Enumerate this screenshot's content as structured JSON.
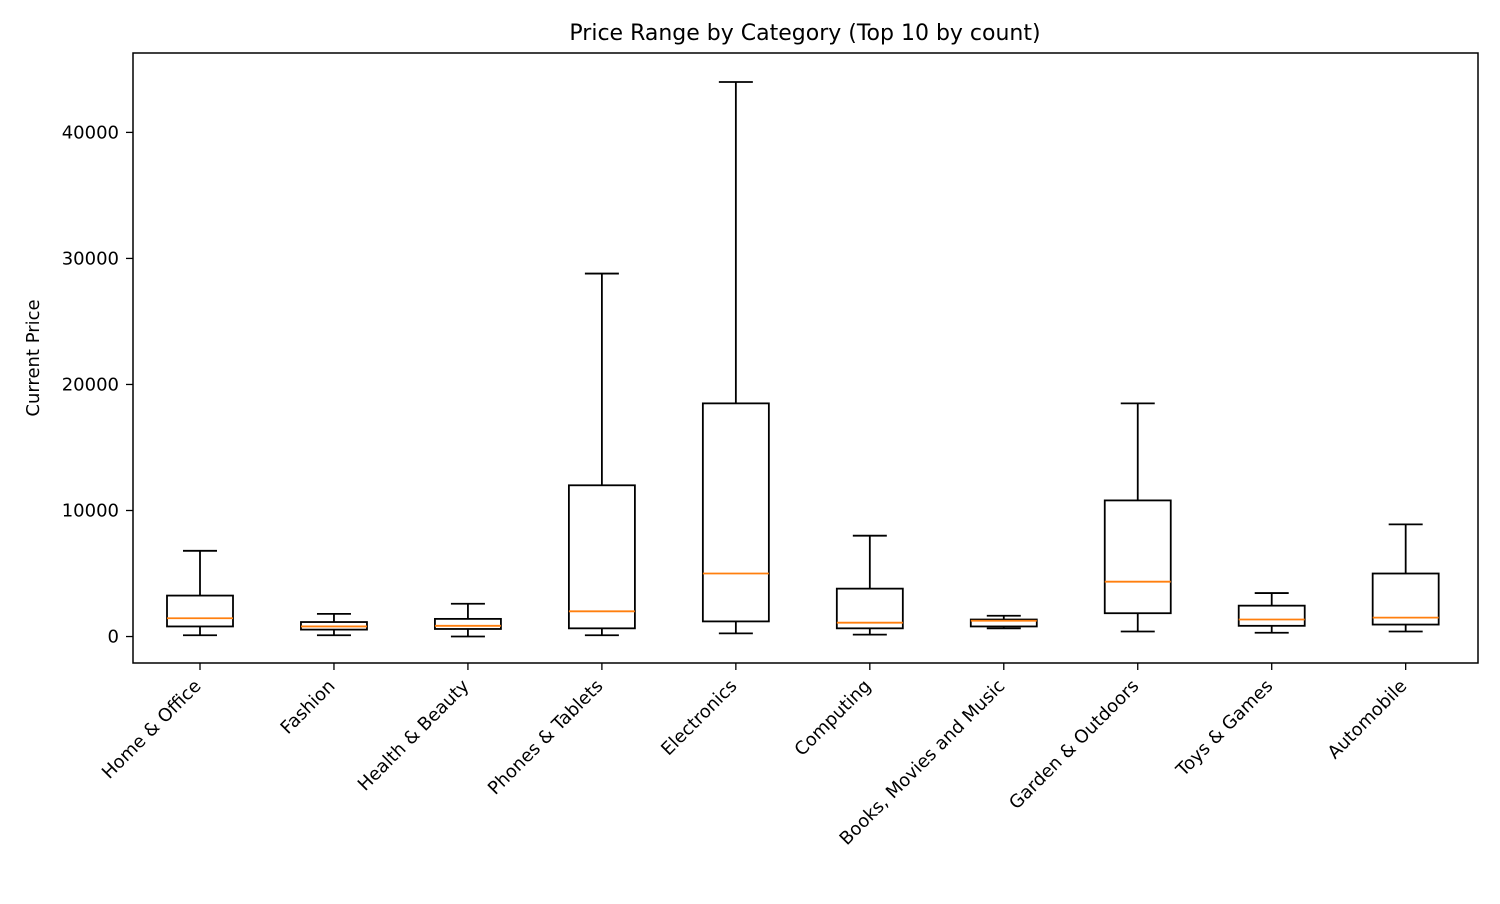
{
  "chart_data": {
    "type": "box",
    "title": "Price Range by Category (Top 10 by count)",
    "xlabel": "",
    "ylabel": "Current Price",
    "ylim": [
      -2100,
      46300
    ],
    "yticks": [
      0,
      10000,
      20000,
      30000,
      40000
    ],
    "grid": false,
    "outliers_shown": false,
    "categories": [
      "Home & Office",
      "Fashion",
      "Health & Beauty",
      "Phones & Tablets",
      "Electronics",
      "Computing",
      "Books, Movies and Music",
      "Garden & Outdoors",
      "Toys & Games",
      "Automobile"
    ],
    "boxes": [
      {
        "whisker_low": 100,
        "q1": 800,
        "median": 1450,
        "q3": 3250,
        "whisker_high": 6800
      },
      {
        "whisker_low": 100,
        "q1": 550,
        "median": 800,
        "q3": 1150,
        "whisker_high": 1800
      },
      {
        "whisker_low": 0,
        "q1": 600,
        "median": 850,
        "q3": 1400,
        "whisker_high": 2600
      },
      {
        "whisker_low": 100,
        "q1": 650,
        "median": 2000,
        "q3": 12000,
        "whisker_high": 28800
      },
      {
        "whisker_low": 250,
        "q1": 1200,
        "median": 5000,
        "q3": 18500,
        "whisker_high": 44000
      },
      {
        "whisker_low": 150,
        "q1": 650,
        "median": 1100,
        "q3": 3800,
        "whisker_high": 8000
      },
      {
        "whisker_low": 650,
        "q1": 800,
        "median": 1250,
        "q3": 1350,
        "whisker_high": 1650
      },
      {
        "whisker_low": 400,
        "q1": 1850,
        "median": 4350,
        "q3": 10800,
        "whisker_high": 18500
      },
      {
        "whisker_low": 300,
        "q1": 850,
        "median": 1350,
        "q3": 2450,
        "whisker_high": 3450
      },
      {
        "whisker_low": 400,
        "q1": 950,
        "median": 1500,
        "q3": 5000,
        "whisker_high": 8900
      }
    ],
    "colors": {
      "box": "#000000",
      "median": "#ff7f0e",
      "axes": "#000000"
    }
  }
}
